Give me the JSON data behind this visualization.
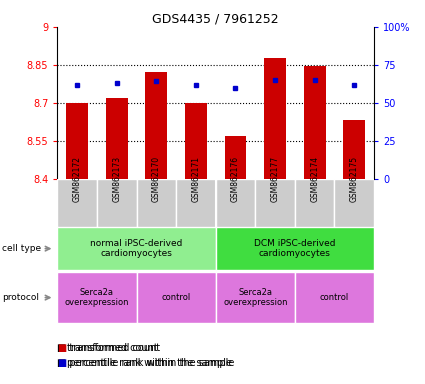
{
  "title": "GDS4435 / 7961252",
  "samples": [
    "GSM862172",
    "GSM862173",
    "GSM862170",
    "GSM862171",
    "GSM862176",
    "GSM862177",
    "GSM862174",
    "GSM862175"
  ],
  "transformed_counts": [
    8.7,
    8.72,
    8.82,
    8.7,
    8.57,
    8.875,
    8.845,
    8.63
  ],
  "percentile_ranks": [
    62,
    63,
    64,
    62,
    60,
    65,
    65,
    62
  ],
  "ylim_left": [
    8.4,
    9.0
  ],
  "ylim_right": [
    0,
    100
  ],
  "yticks_left": [
    8.4,
    8.55,
    8.7,
    8.85,
    9.0
  ],
  "yticks_right": [
    0,
    25,
    50,
    75,
    100
  ],
  "ytick_labels_left": [
    "8.4",
    "8.55",
    "8.7",
    "8.85",
    "9"
  ],
  "ytick_labels_right": [
    "0",
    "25",
    "50",
    "75",
    "100%"
  ],
  "bar_color": "#cc0000",
  "dot_color": "#0000cc",
  "cell_type_groups": [
    {
      "label": "normal iPSC-derived\ncardiomyocytes",
      "start": 0,
      "end": 3,
      "color": "#90ee90"
    },
    {
      "label": "DCM iPSC-derived\ncardiomyocytes",
      "start": 4,
      "end": 7,
      "color": "#40dd40"
    }
  ],
  "protocol_groups": [
    {
      "label": "Serca2a\noverexpression",
      "start": 0,
      "end": 1,
      "color": "#dd77dd"
    },
    {
      "label": "control",
      "start": 2,
      "end": 3,
      "color": "#dd77dd"
    },
    {
      "label": "Serca2a\noverexpression",
      "start": 4,
      "end": 5,
      "color": "#dd77dd"
    },
    {
      "label": "control",
      "start": 6,
      "end": 7,
      "color": "#dd77dd"
    }
  ],
  "cell_type_label": "cell type",
  "protocol_label": "protocol",
  "legend_bar_label": "transformed count",
  "legend_dot_label": "percentile rank within the sample",
  "sample_bg_color": "#cccccc",
  "group_divider_color": "#000000"
}
